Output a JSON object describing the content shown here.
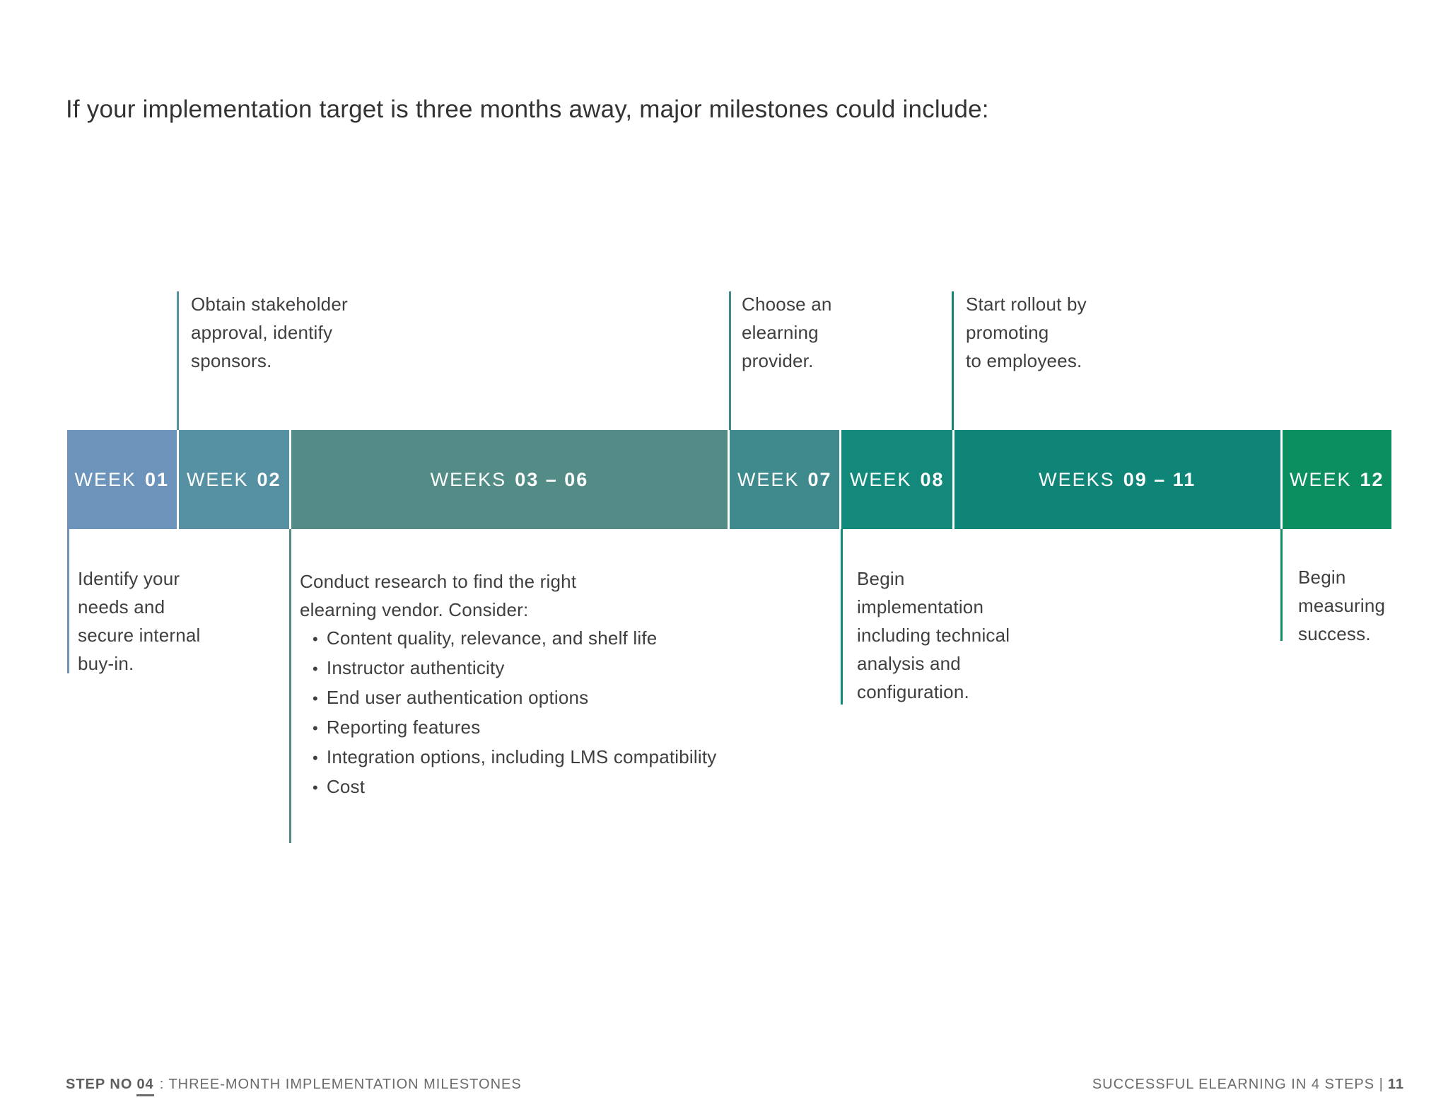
{
  "page": {
    "title": "If your implementation target is three months away, major milestones could include:"
  },
  "timeline": {
    "segments": [
      {
        "prefix": "WEEK",
        "number": "01",
        "color": "#6C94BA"
      },
      {
        "prefix": "WEEK",
        "number": "02",
        "color": "#5590A3"
      },
      {
        "prefix": "WEEKS",
        "number": "03 – 06",
        "color": "#538C86"
      },
      {
        "prefix": "WEEK",
        "number": "07",
        "color": "#3F8A8D"
      },
      {
        "prefix": "WEEK",
        "number": "08",
        "color": "#13897C"
      },
      {
        "prefix": "WEEKS",
        "number": "09 – 11",
        "color": "#0F8578"
      },
      {
        "prefix": "WEEK",
        "number": "12",
        "color": "#0B8F61"
      }
    ],
    "annotations_above": [
      {
        "line_color": "#5590A3",
        "lines": [
          "Obtain stakeholder",
          "approval, identify",
          "sponsors."
        ]
      },
      {
        "line_color": "#3F8A8D",
        "lines": [
          "Choose an",
          "elearning",
          "provider."
        ]
      },
      {
        "line_color": "#0F8578",
        "lines": [
          "Start rollout by",
          "promoting",
          "to employees."
        ]
      }
    ],
    "annotations_below": [
      {
        "line_color": "#6C94BA",
        "lines": [
          "Identify your",
          "needs and",
          "secure internal",
          "buy-in."
        ]
      },
      {
        "line_color": "#538C86",
        "intro_lines": [
          "Conduct research to find the right",
          "elearning vendor. Consider:"
        ],
        "bullets": [
          "Content quality, relevance, and shelf life",
          "Instructor authenticity",
          "End user authentication options",
          "Reporting features",
          "Integration options, including LMS compatibility",
          "Cost"
        ]
      },
      {
        "line_color": "#13897C",
        "lines": [
          "Begin",
          "implementation",
          "including technical",
          "analysis and",
          "configuration."
        ]
      },
      {
        "line_color": "#0B8F61",
        "lines": [
          "Begin",
          "measuring",
          "success."
        ]
      }
    ]
  },
  "footer": {
    "left_bold": "STEP NO",
    "left_step": "04",
    "left_rest": ": THREE-MONTH IMPLEMENTATION MILESTONES",
    "right_text": "SUCCESSFUL ELEARNING IN 4 STEPS |",
    "right_page": "11"
  }
}
